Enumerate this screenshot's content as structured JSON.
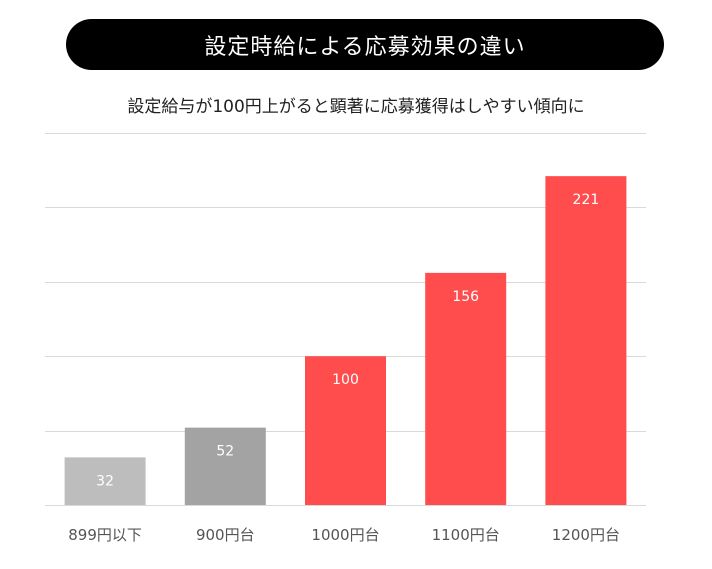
{
  "title": "設定時給による応募効果の違い",
  "subtitle": "設定給与が100円上がると顕著に応募獲得はしやすい傾向に",
  "colors": {
    "gray_light": "#bdbdbd",
    "gray_dark": "#a3a3a3",
    "red": "#ff4d4d",
    "grid": "#d9d9d9"
  },
  "chart_data": {
    "type": "bar",
    "title": "設定時給による応募効果の違い",
    "subtitle": "設定給与が100円上がると顕著に応募獲得はしやすい傾向に",
    "xlabel": "",
    "ylabel": "",
    "categories": [
      "899円以下",
      "900円台",
      "1000円台",
      "1100円台",
      "1200円台"
    ],
    "values": [
      32,
      52,
      100,
      156,
      221
    ],
    "bar_colors": [
      "#bdbdbd",
      "#a3a3a3",
      "#ff4d4d",
      "#ff4d4d",
      "#ff4d4d"
    ],
    "ylim": [
      0,
      250
    ],
    "grid": true,
    "gridline_step": 50,
    "data_labels": true
  }
}
